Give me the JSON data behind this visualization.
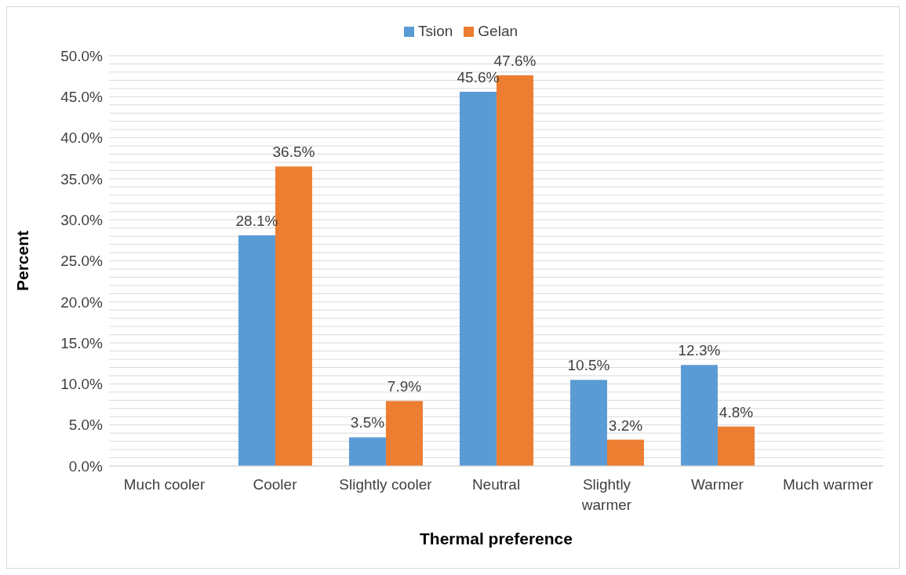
{
  "chart_data": {
    "type": "bar",
    "xlabel": "Thermal preference",
    "ylabel": "Percent",
    "categories": [
      "Much cooler",
      "Cooler",
      "Slightly cooler",
      "Neutral",
      "Slightly warmer",
      "Warmer",
      "Much warmer"
    ],
    "series": [
      {
        "name": "Tsion",
        "color": "#5b9bd5",
        "values": [
          0,
          28.1,
          3.5,
          45.6,
          10.5,
          12.3,
          0
        ],
        "value_labels": [
          null,
          "28.1%",
          "3.5%",
          "45.6%",
          "10.5%",
          "12.3%",
          null
        ]
      },
      {
        "name": "Gelan",
        "color": "#ed7d31",
        "values": [
          0,
          36.5,
          7.9,
          47.6,
          3.2,
          4.8,
          0
        ],
        "value_labels": [
          null,
          "36.5%",
          "7.9%",
          "47.6%",
          "3.2%",
          "4.8%",
          null
        ]
      }
    ],
    "ylim": [
      0,
      50
    ],
    "yticks": [
      {
        "value": 0,
        "label": "0.0%"
      },
      {
        "value": 1,
        "label": null
      },
      {
        "value": 2,
        "label": null
      },
      {
        "value": 3,
        "label": null
      },
      {
        "value": 4,
        "label": null
      },
      {
        "value": 5,
        "label": "5.0%"
      },
      {
        "value": 6,
        "label": null
      },
      {
        "value": 7,
        "label": null
      },
      {
        "value": 8,
        "label": null
      },
      {
        "value": 9,
        "label": null
      },
      {
        "value": 10,
        "label": "10.0%"
      },
      {
        "value": 11,
        "label": null
      },
      {
        "value": 12,
        "label": null
      },
      {
        "value": 13,
        "label": null
      },
      {
        "value": 14,
        "label": null
      },
      {
        "value": 15,
        "label": "15.0%"
      },
      {
        "value": 16,
        "label": null
      },
      {
        "value": 17,
        "label": null
      },
      {
        "value": 18,
        "label": null
      },
      {
        "value": 19,
        "label": null
      },
      {
        "value": 20,
        "label": "20.0%"
      },
      {
        "value": 21,
        "label": null
      },
      {
        "value": 22,
        "label": null
      },
      {
        "value": 23,
        "label": null
      },
      {
        "value": 24,
        "label": null
      },
      {
        "value": 25,
        "label": "25.0%"
      },
      {
        "value": 26,
        "label": null
      },
      {
        "value": 27,
        "label": null
      },
      {
        "value": 28,
        "label": null
      },
      {
        "value": 29,
        "label": null
      },
      {
        "value": 30,
        "label": "30.0%"
      },
      {
        "value": 31,
        "label": null
      },
      {
        "value": 32,
        "label": null
      },
      {
        "value": 33,
        "label": null
      },
      {
        "value": 34,
        "label": null
      },
      {
        "value": 35,
        "label": "35.0%"
      },
      {
        "value": 36,
        "label": null
      },
      {
        "value": 37,
        "label": null
      },
      {
        "value": 38,
        "label": null
      },
      {
        "value": 39,
        "label": null
      },
      {
        "value": 40,
        "label": "40.0%"
      },
      {
        "value": 41,
        "label": null
      },
      {
        "value": 42,
        "label": null
      },
      {
        "value": 43,
        "label": null
      },
      {
        "value": 44,
        "label": null
      },
      {
        "value": 45,
        "label": "45.0%"
      },
      {
        "value": 46,
        "label": null
      },
      {
        "value": 47,
        "label": null
      },
      {
        "value": 48,
        "label": null
      },
      {
        "value": 49,
        "label": null
      },
      {
        "value": 50,
        "label": "50.0%"
      }
    ],
    "grid": "y",
    "legend": "top"
  }
}
